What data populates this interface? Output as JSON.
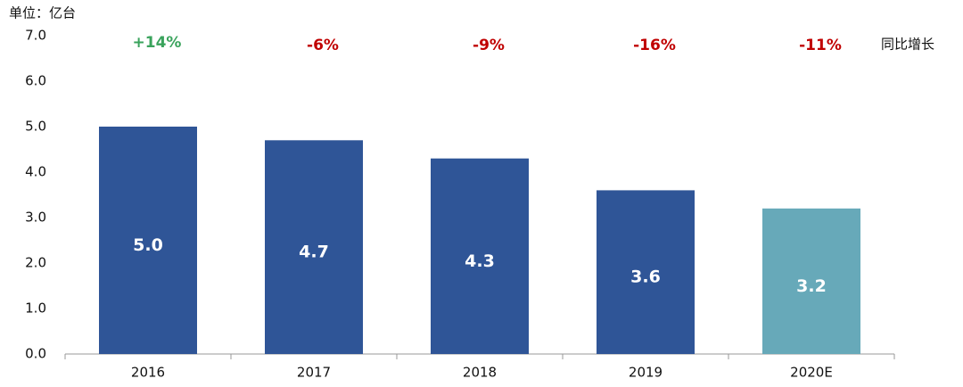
{
  "chart_data": {
    "type": "bar",
    "unit_label": "单位：亿台",
    "categories": [
      "2016",
      "2017",
      "2018",
      "2019",
      "2020E"
    ],
    "values": [
      5.0,
      4.7,
      4.3,
      3.6,
      3.2
    ],
    "value_labels": [
      "5.0",
      "4.7",
      "4.3",
      "3.6",
      "3.2"
    ],
    "colors": [
      "#2f5597",
      "#2f5597",
      "#2f5597",
      "#2f5597",
      "#67a9b9"
    ],
    "growth_label": "同比增长",
    "growth": [
      "+14%",
      "-6%",
      "-9%",
      "-16%",
      "-11%"
    ],
    "growth_colors": [
      "#3aa35c",
      "#c00000",
      "#c00000",
      "#c00000",
      "#c00000"
    ],
    "ylim": [
      0,
      7
    ],
    "yticks": [
      {
        "value": 0,
        "label": "0.0"
      },
      {
        "value": 1,
        "label": "1.0"
      },
      {
        "value": 2,
        "label": "2.0"
      },
      {
        "value": 3,
        "label": "3.0"
      },
      {
        "value": 4,
        "label": "4.0"
      },
      {
        "value": 5,
        "label": "5.0"
      },
      {
        "value": 6,
        "label": "6.0"
      },
      {
        "value": 7,
        "label": "7.0"
      }
    ],
    "grid": false
  }
}
